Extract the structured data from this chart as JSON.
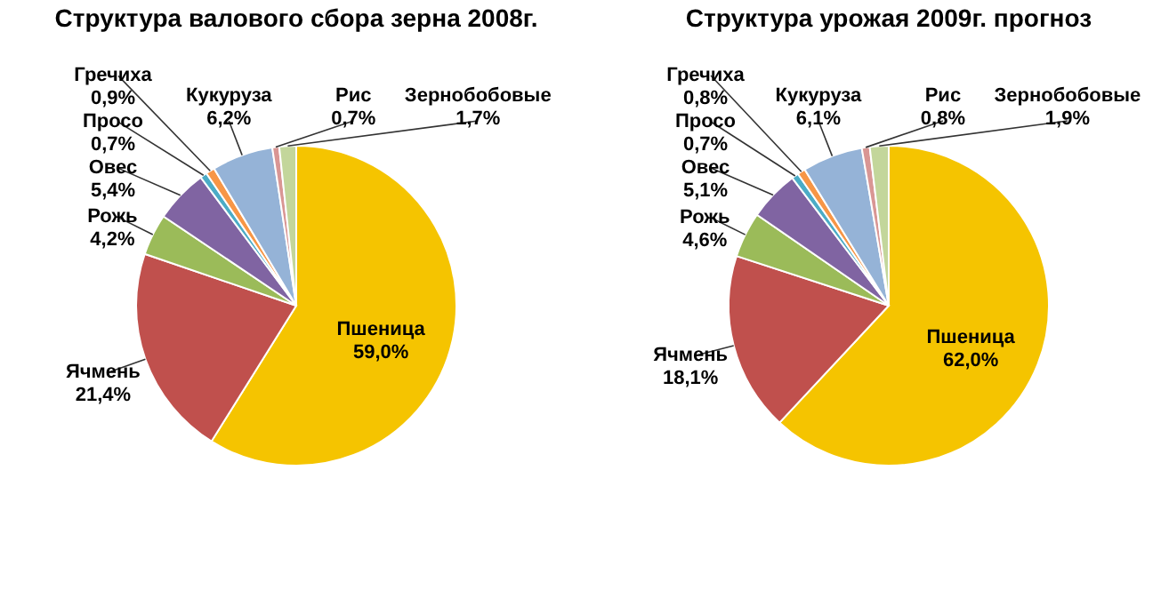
{
  "chart_data": [
    {
      "type": "pie",
      "title": "Структура валового сбора зерна 2008г.",
      "categories": [
        "Пшеница",
        "Ячмень",
        "Рожь",
        "Овес",
        "Просо",
        "Гречиха",
        "Кукуруза",
        "Рис",
        "Зернобобовые"
      ],
      "values": [
        59.0,
        21.4,
        4.2,
        5.4,
        0.7,
        0.9,
        6.2,
        0.7,
        1.7
      ],
      "value_labels": [
        "59,0%",
        "21,4%",
        "4,2%",
        "5,4%",
        "0,7%",
        "0,9%",
        "6,2%",
        "0,7%",
        "1,7%"
      ],
      "colors": [
        "#f5c400",
        "#c0504d",
        "#9bbb59",
        "#8064a2",
        "#4bacc6",
        "#f79646",
        "#95b3d7",
        "#d99694",
        "#c3d69b"
      ]
    },
    {
      "type": "pie",
      "title": "Структура урожая 2009г. прогноз",
      "categories": [
        "Пшеница",
        "Ячмень",
        "Рожь",
        "Овес",
        "Просо",
        "Гречиха",
        "Кукуруза",
        "Рис",
        "Зернобобовые"
      ],
      "values": [
        62.0,
        18.1,
        4.6,
        5.1,
        0.7,
        0.8,
        6.1,
        0.8,
        1.9
      ],
      "value_labels": [
        "62,0%",
        "18,1%",
        "4,6%",
        "5,1%",
        "0,7%",
        "0,8%",
        "6,1%",
        "0,8%",
        "1,9%"
      ],
      "colors": [
        "#f5c400",
        "#c0504d",
        "#9bbb59",
        "#8064a2",
        "#4bacc6",
        "#f79646",
        "#95b3d7",
        "#d99694",
        "#c3d69b"
      ]
    }
  ]
}
